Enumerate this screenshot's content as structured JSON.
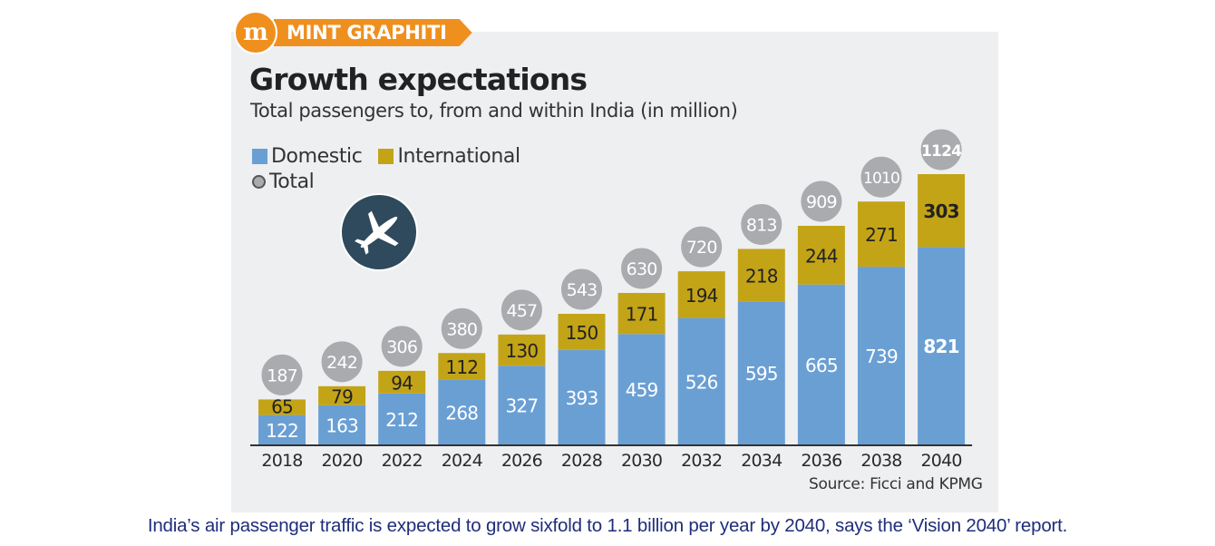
{
  "badge": {
    "logo_letter": "m",
    "label": "MINT GRAPHITI"
  },
  "source": "Source: Ficci and KPMG",
  "caption": "India’s air passenger traffic is expected to grow sixfold to 1.1 billion per year by 2040, says the ‘Vision 2040’ report.",
  "icons": {
    "plane": "airplane-icon"
  },
  "colors": {
    "domestic": "#6a9fd4",
    "international": "#c3a417",
    "total": "#a9abaf",
    "brand": "#ef8f1e"
  },
  "chart_data": {
    "type": "bar",
    "stacked": true,
    "title": "Growth expectations",
    "subtitle": "Total passengers to, from and within India (in million)",
    "xlabel": "",
    "ylabel": "",
    "categories": [
      "2018",
      "2020",
      "2022",
      "2024",
      "2026",
      "2028",
      "2030",
      "2032",
      "2034",
      "2036",
      "2038",
      "2040"
    ],
    "series": [
      {
        "name": "Domestic",
        "values": [
          122,
          163,
          212,
          268,
          327,
          393,
          459,
          526,
          595,
          665,
          739,
          821
        ]
      },
      {
        "name": "International",
        "values": [
          65,
          79,
          94,
          112,
          130,
          150,
          171,
          194,
          218,
          244,
          271,
          303
        ]
      }
    ],
    "totals": {
      "name": "Total",
      "values": [
        187,
        242,
        306,
        380,
        457,
        543,
        630,
        720,
        813,
        909,
        1010,
        1124
      ]
    },
    "legend": [
      "Domestic",
      "International",
      "Total"
    ],
    "legend_position": "top-left",
    "ylim": [
      0,
      1124
    ],
    "grid": false
  }
}
